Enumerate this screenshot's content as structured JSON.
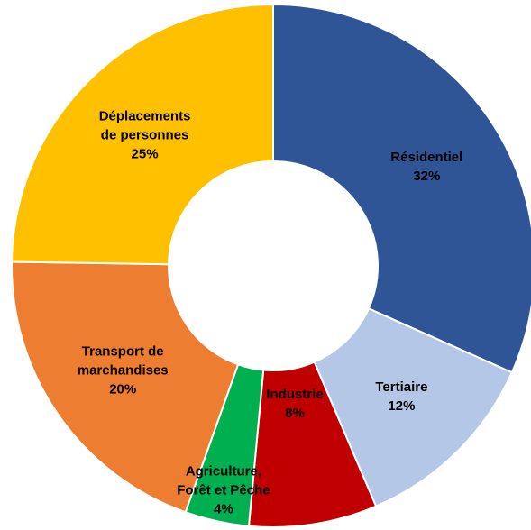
{
  "chart_data": {
    "type": "donut",
    "categories": [
      "Résidentiel",
      "Tertiaire",
      "Industrie",
      "Agriculture, Forêt et Pêche",
      "Transport de marchandises",
      "Déplacements de personnes"
    ],
    "values": [
      32,
      12,
      8,
      4,
      20,
      25
    ],
    "value_labels": [
      "32%",
      "12%",
      "8%",
      "4%",
      "20%",
      "25%"
    ],
    "colors": [
      "#2f5597",
      "#b4c7e7",
      "#c00000",
      "#00b050",
      "#ed7d31",
      "#ffc000"
    ]
  }
}
